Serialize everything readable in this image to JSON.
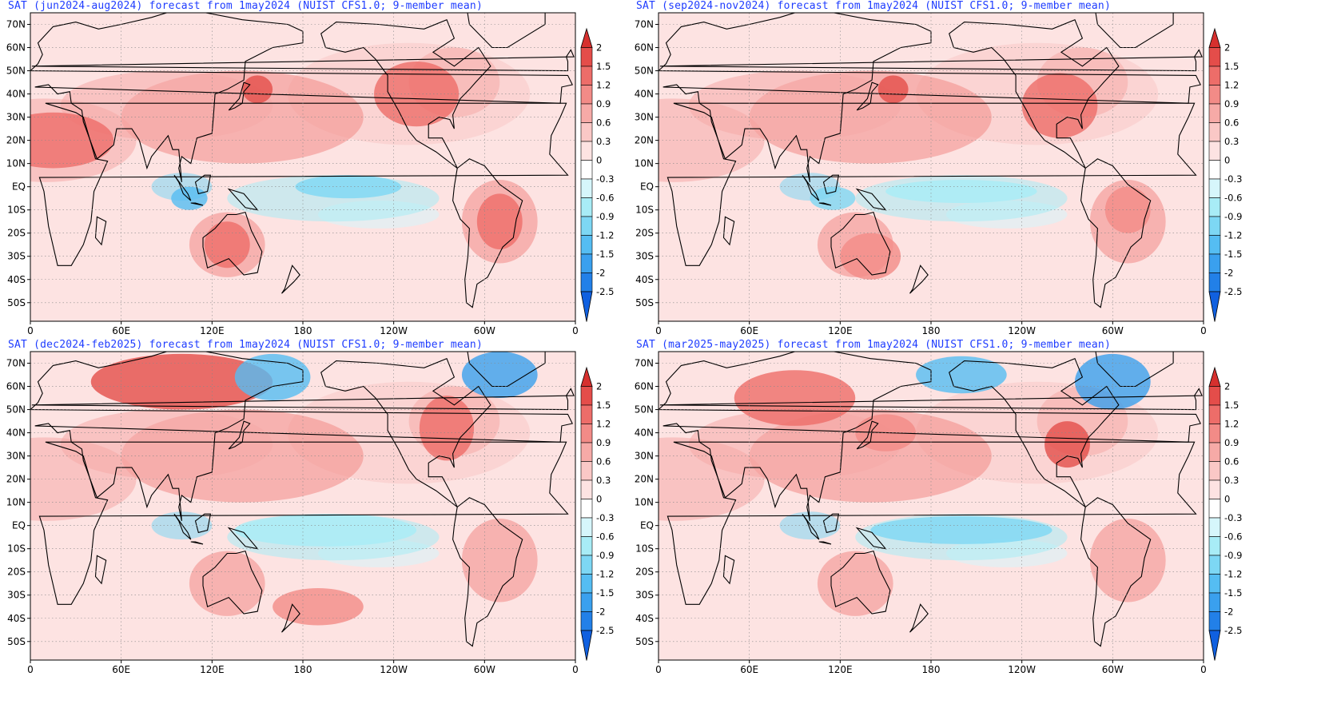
{
  "panels": [
    {
      "id": "p1",
      "title": "SAT (jun2024-aug2024) forecast from 1may2024 (NUIST CFS1.0; 9-member mean)"
    },
    {
      "id": "p2",
      "title": "SAT (sep2024-nov2024) forecast from 1may2024 (NUIST CFS1.0; 9-member mean)"
    },
    {
      "id": "p3",
      "title": "SAT (dec2024-feb2025) forecast from 1may2024 (NUIST CFS1.0; 9-member mean)"
    },
    {
      "id": "p4",
      "title": "SAT (mar2025-may2025) forecast from 1may2024 (NUIST CFS1.0; 9-member mean)"
    }
  ],
  "lat_labels": [
    "70N",
    "60N",
    "50N",
    "40N",
    "30N",
    "20N",
    "10N",
    "EQ",
    "10S",
    "20S",
    "30S",
    "40S",
    "50S"
  ],
  "lon_labels": [
    "0",
    "60E",
    "120E",
    "180",
    "120W",
    "60W",
    "0"
  ],
  "colorbar": {
    "labels": [
      "2",
      "1.5",
      "1.2",
      "0.9",
      "0.6",
      "0.3",
      "0",
      "-0.3",
      "-0.6",
      "-0.9",
      "-1.2",
      "-1.5",
      "-2",
      "-2.5"
    ],
    "colors": [
      "#d6302e",
      "#e44d4a",
      "#ed6d69",
      "#f28b87",
      "#f6aaa7",
      "#fac8c6",
      "#fde3e2",
      "#ffffff",
      "#d6f6fb",
      "#a8ecf6",
      "#7dd7f4",
      "#55bdf2",
      "#3aa0ee",
      "#2280e8",
      "#1060e0"
    ]
  }
}
